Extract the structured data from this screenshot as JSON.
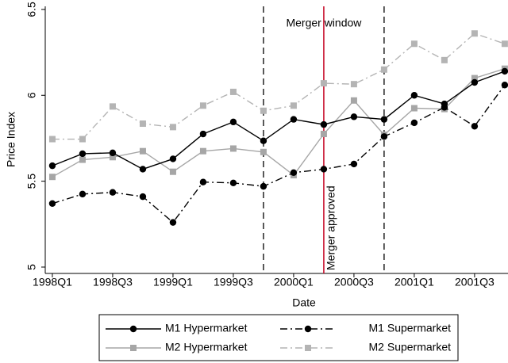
{
  "chart_data": {
    "type": "line",
    "x_label": "Date",
    "y_label": "Price Index",
    "x": [
      1998,
      1998.25,
      1998.5,
      1998.75,
      1999,
      1999.25,
      1999.5,
      1999.75,
      2000,
      2000.25,
      2000.5,
      2000.75,
      2001,
      2001.25,
      2001.5,
      2001.75
    ],
    "xlim": [
      1997.941,
      2001.777
    ],
    "xticks": [
      {
        "value": 1998,
        "label": "1998Q1"
      },
      {
        "value": 1998.5,
        "label": "1998Q3"
      },
      {
        "value": 1999,
        "label": "1999Q1"
      },
      {
        "value": 1999.5,
        "label": "1999Q3"
      },
      {
        "value": 2000,
        "label": "2000Q1"
      },
      {
        "value": 2000.5,
        "label": "2000Q3"
      },
      {
        "value": 2001,
        "label": "2001Q1"
      },
      {
        "value": 2001.5,
        "label": "2001Q3"
      }
    ],
    "ylim": [
      4.963,
      6.518
    ],
    "yticks": [
      5,
      5.5,
      6,
      6.5
    ],
    "grid": false,
    "series": [
      {
        "name": "M1 Hypermarket",
        "color": "#000000",
        "marker": "circle",
        "dash": "solid",
        "values": [
          5.59,
          5.66,
          5.665,
          5.57,
          5.63,
          5.775,
          5.845,
          5.735,
          5.86,
          5.83,
          5.875,
          5.86,
          6.0,
          5.95,
          6.075,
          6.14
        ]
      },
      {
        "name": "M1 Supermarket",
        "color": "#000000",
        "marker": "circle",
        "dash": "dashdot",
        "values": [
          5.37,
          5.425,
          5.435,
          5.41,
          5.26,
          5.495,
          5.49,
          5.47,
          5.55,
          5.57,
          5.6,
          5.76,
          5.84,
          5.93,
          5.82,
          6.06
        ]
      },
      {
        "name": "M2 Hypermarket",
        "color": "#a6a6a6",
        "marker": "square",
        "dash": "solid",
        "values": [
          5.525,
          5.625,
          5.64,
          5.675,
          5.555,
          5.675,
          5.69,
          5.67,
          5.535,
          5.775,
          5.97,
          5.77,
          5.925,
          5.92,
          6.1,
          6.155
        ]
      },
      {
        "name": "M2 Supermarket",
        "color": "#b4b4b4",
        "marker": "square",
        "dash": "dashdot",
        "values": [
          5.745,
          5.745,
          5.935,
          5.835,
          5.815,
          5.94,
          6.02,
          5.91,
          5.94,
          6.07,
          6.065,
          6.15,
          6.3,
          6.205,
          6.36,
          6.3
        ]
      }
    ],
    "reference_lines": [
      {
        "x": 1999.75,
        "color": "#000000",
        "dash": "dashed"
      },
      {
        "x": 2000.25,
        "color": "#c8102e",
        "dash": "solid",
        "label": "Merger approved"
      },
      {
        "x": 2000.75,
        "color": "#000000",
        "dash": "dashed"
      }
    ],
    "annotation": "Merger window"
  }
}
